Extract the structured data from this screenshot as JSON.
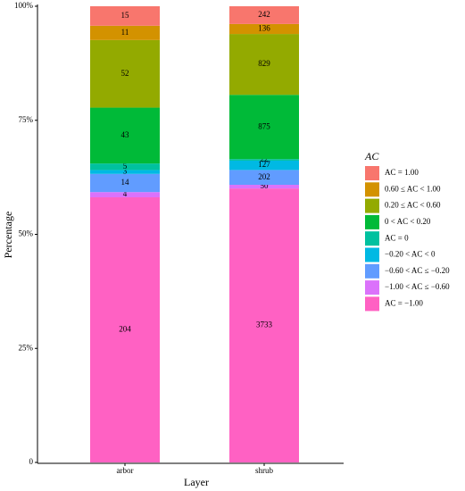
{
  "chart_data": {
    "type": "bar",
    "stacked": "percent",
    "x_label": "Layer",
    "y_label": "Percentage",
    "legend_title": "AC",
    "legend_position": "right",
    "categories": [
      "arbor",
      "shrub"
    ],
    "ylim": [
      0,
      100
    ],
    "yticks": [
      0,
      {
        "value": 25,
        "label": "25%"
      },
      {
        "value": 50,
        "label": "50%"
      },
      {
        "value": 75,
        "label": "75%"
      },
      {
        "value": 100,
        "label": "100%"
      }
    ],
    "series": [
      {
        "name": "AC = −1.00",
        "color": "#FF61C3",
        "values": [
          204,
          3733
        ]
      },
      {
        "name": "−1.00 < AC ≤ −0.60",
        "color": "#DB72FB",
        "values": [
          4,
          50
        ]
      },
      {
        "name": "−0.60 < AC ≤ −0.20",
        "color": "#619CFF",
        "values": [
          14,
          202
        ]
      },
      {
        "name": "−0.20 < AC < 0",
        "color": "#00B9E3",
        "values": [
          3,
          127
        ]
      },
      {
        "name": "AC = 0",
        "color": "#00C19F",
        "values": [
          5,
          22
        ]
      },
      {
        "name": "0 < AC < 0.20",
        "color": "#00BA38",
        "values": [
          43,
          875
        ]
      },
      {
        "name": "0.20 ≤ AC < 0.60",
        "color": "#93AA00",
        "values": [
          52,
          829
        ]
      },
      {
        "name": "0.60 ≤ AC < 1.00",
        "color": "#D39200",
        "values": [
          11,
          136
        ]
      },
      {
        "name": "AC = 1.00",
        "color": "#F8766D",
        "values": [
          15,
          242
        ]
      }
    ]
  }
}
